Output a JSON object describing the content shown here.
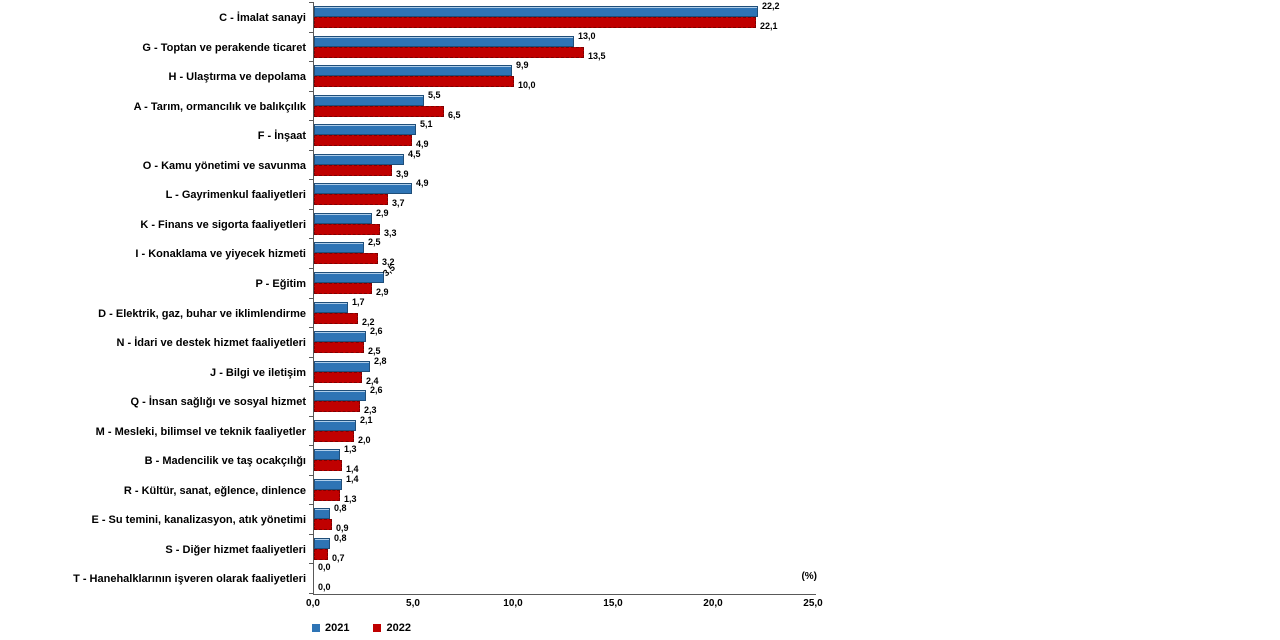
{
  "chart_data": {
    "type": "bar",
    "orientation": "horizontal",
    "title": "",
    "unit_label": "(%)",
    "axis": {
      "xlim": [
        0,
        25
      ],
      "xtick_step": 5,
      "xtick_labels": [
        "0,0",
        "5,0",
        "10,0",
        "15,0",
        "20,0",
        "25,0"
      ],
      "grid": false
    },
    "legend": {
      "position": "bottom-left",
      "entries": [
        {
          "label": "2021",
          "color": "#2E74B5"
        },
        {
          "label": "2022",
          "color": "#C00000"
        }
      ]
    },
    "categories": [
      "C - İmalat sanayi",
      "G - Toptan ve perakende ticaret",
      "H - Ulaştırma ve depolama",
      "A - Tarım, ormancılık ve balıkçılık",
      "F - İnşaat",
      "O - Kamu yönetimi ve savunma",
      "L - Gayrimenkul faaliyetleri",
      "K - Finans ve sigorta faaliyetleri",
      "I - Konaklama ve yiyecek hizmeti",
      "P - Eğitim",
      "D - Elektrik, gaz, buhar ve iklimlendirme",
      "N - İdari ve destek hizmet faaliyetleri",
      "J - Bilgi ve iletişim",
      "Q - İnsan sağlığı ve sosyal hizmet",
      "M - Mesleki, bilimsel ve teknik faaliyetler",
      "B - Madencilik ve taş ocakçılığı",
      "R - Kültür, sanat, eğlence, dinlence",
      "E - Su temini, kanalizasyon, atık yönetimi",
      "S - Diğer hizmet faaliyetleri",
      "T - Hanehalklarının işveren olarak faaliyetleri"
    ],
    "series": [
      {
        "name": "2021",
        "color": "#2E74B5",
        "values": [
          22.2,
          13.0,
          9.9,
          5.5,
          5.1,
          4.5,
          4.9,
          2.9,
          2.5,
          3.5,
          1.7,
          2.6,
          2.8,
          2.6,
          2.1,
          1.3,
          1.4,
          0.8,
          0.8,
          0.0
        ],
        "labels": [
          "22,2",
          "13,0",
          "9,9",
          "5,5",
          "5,1",
          "4,5",
          "4,9",
          "2,9",
          "2,5",
          "3,5",
          "1,7",
          "2,6",
          "2,8",
          "2,6",
          "2,1",
          "1,3",
          "1,4",
          "0,8",
          "0,8",
          "0,0"
        ]
      },
      {
        "name": "2022",
        "color": "#C00000",
        "values": [
          22.1,
          13.5,
          10.0,
          6.5,
          4.9,
          3.9,
          3.7,
          3.3,
          3.2,
          2.9,
          2.2,
          2.5,
          2.4,
          2.3,
          2.0,
          1.4,
          1.3,
          0.9,
          0.7,
          0.0
        ],
        "labels": [
          "22,1",
          "13,5",
          "10,0",
          "6,5",
          "4,9",
          "3,9",
          "3,7",
          "3,3",
          "3,2",
          "2,9",
          "2,2",
          "2,5",
          "2,4",
          "2,3",
          "2,0",
          "1,4",
          "1,3",
          "0,9",
          "0,7",
          "0,0"
        ]
      }
    ],
    "rotated_value_labels": [
      {
        "series": "2021",
        "category": "P - Eğitim"
      }
    ]
  }
}
